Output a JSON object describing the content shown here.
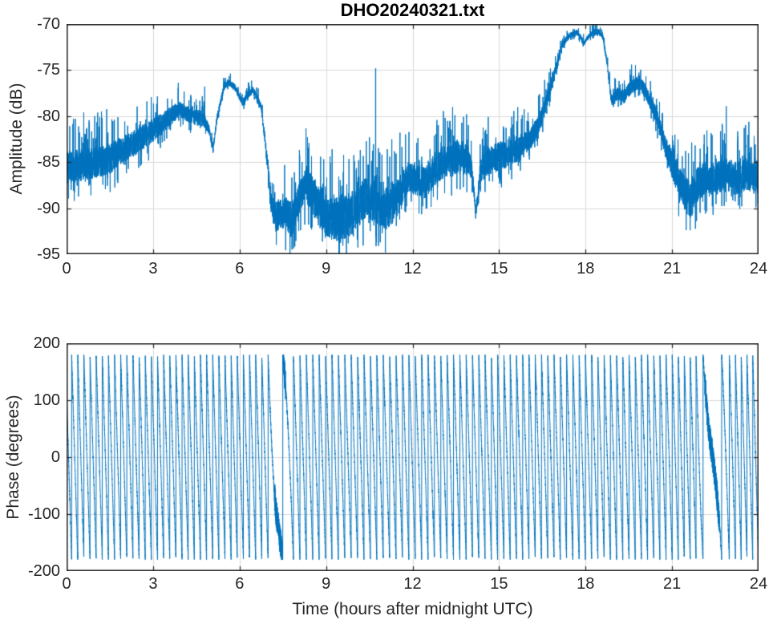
{
  "figure": {
    "background_color": "#ffffff",
    "line_color": "#0072bd",
    "axis_color": "#262626",
    "grid_color": "#d9d9d9",
    "title_color": "#000000"
  },
  "chart_data": [
    {
      "type": "line",
      "title": "DHO20240321.txt",
      "xlabel": "",
      "ylabel": "Amplitude (dB)",
      "xlim": [
        0,
        24
      ],
      "ylim": [
        -95,
        -70
      ],
      "xticks": [
        0,
        3,
        6,
        9,
        12,
        15,
        18,
        21,
        24
      ],
      "yticks": [
        -70,
        -75,
        -80,
        -85,
        -90,
        -95
      ],
      "grid": true,
      "legend": null,
      "series": [
        {
          "name": "amplitude",
          "representation": "noisy_envelope",
          "t": [
            0.0,
            0.5,
            1.0,
            1.5,
            2.0,
            2.5,
            3.0,
            3.5,
            3.9,
            4.2,
            4.5,
            4.75,
            4.95,
            5.08,
            5.2,
            5.45,
            5.62,
            5.85,
            6.1,
            6.3,
            6.45,
            6.6,
            6.75,
            6.9,
            7.1,
            7.25,
            7.5,
            7.8,
            8.05,
            8.3,
            8.6,
            9.0,
            9.5,
            10.0,
            10.4,
            10.75,
            11.1,
            11.5,
            11.85,
            12.15,
            12.45,
            12.75,
            13.1,
            13.5,
            13.85,
            14.05,
            14.2,
            14.35,
            14.6,
            15.0,
            15.4,
            15.8,
            16.1,
            16.45,
            16.75,
            17.0,
            17.2,
            17.45,
            17.7,
            17.95,
            18.2,
            18.45,
            18.6,
            18.75,
            18.9,
            19.1,
            19.35,
            19.6,
            19.85,
            20.1,
            20.45,
            20.8,
            21.1,
            21.4,
            21.65,
            21.9,
            22.2,
            22.5,
            22.85,
            23.2,
            23.6,
            24.0
          ],
          "mean_db": [
            -85.6,
            -85.3,
            -85.0,
            -84.6,
            -83.6,
            -82.6,
            -81.6,
            -80.3,
            -79.2,
            -79.8,
            -80.1,
            -80.3,
            -81.5,
            -83.7,
            -80.5,
            -76.9,
            -76.3,
            -76.9,
            -78.6,
            -77.6,
            -77.2,
            -77.9,
            -79.0,
            -83.0,
            -89.5,
            -91.0,
            -90.3,
            -91.3,
            -89.0,
            -87.2,
            -89.0,
            -90.8,
            -91.3,
            -90.3,
            -88.8,
            -89.3,
            -90.0,
            -88.8,
            -86.6,
            -87.0,
            -87.3,
            -85.8,
            -84.9,
            -84.4,
            -84.6,
            -85.8,
            -90.6,
            -86.0,
            -84.9,
            -84.4,
            -83.9,
            -83.3,
            -82.4,
            -80.3,
            -77.3,
            -74.4,
            -72.2,
            -71.2,
            -70.9,
            -72.0,
            -71.0,
            -70.8,
            -71.4,
            -74.3,
            -78.4,
            -77.6,
            -77.9,
            -76.8,
            -76.3,
            -77.4,
            -79.9,
            -83.6,
            -85.9,
            -88.1,
            -89.3,
            -87.3,
            -86.6,
            -86.9,
            -86.2,
            -86.8,
            -86.3,
            -86.6
          ],
          "noise_halfwidth_db": [
            1.8,
            1.8,
            1.7,
            1.7,
            1.5,
            1.4,
            1.3,
            1.1,
            0.9,
            0.9,
            0.9,
            0.8,
            0.5,
            0.3,
            0.4,
            0.35,
            0.35,
            0.35,
            0.4,
            0.4,
            0.4,
            0.4,
            0.4,
            0.6,
            1.2,
            1.6,
            1.9,
            2.0,
            1.8,
            2.0,
            2.3,
            2.4,
            2.4,
            2.4,
            2.2,
            2.4,
            2.4,
            2.2,
            1.6,
            1.7,
            1.7,
            1.8,
            1.8,
            1.9,
            1.8,
            1.0,
            0.6,
            1.2,
            1.6,
            1.6,
            1.5,
            1.4,
            1.2,
            1.0,
            0.8,
            0.5,
            0.35,
            0.3,
            0.3,
            0.3,
            0.3,
            0.3,
            0.3,
            0.35,
            0.6,
            0.7,
            0.8,
            0.8,
            0.8,
            0.8,
            0.9,
            1.2,
            1.7,
            2.0,
            2.0,
            1.9,
            1.8,
            1.8,
            1.8,
            1.8,
            1.8,
            1.8
          ]
        }
      ],
      "spikes": [
        {
          "t": 4.79,
          "peak_db": -76.8
        },
        {
          "t": 10.72,
          "peak_db": -74.8
        },
        {
          "t": 22.88,
          "peak_db": -78.9
        }
      ]
    },
    {
      "type": "line",
      "title": "",
      "xlabel": "Time (hours after midnight UTC)",
      "ylabel": "Phase (degrees)",
      "xlim": [
        0,
        24
      ],
      "ylim": [
        -200,
        200
      ],
      "xticks": [
        0,
        3,
        6,
        9,
        12,
        15,
        18,
        21,
        24
      ],
      "yticks": [
        200,
        100,
        0,
        -100,
        -200
      ],
      "grid": true,
      "legend": null,
      "series": [
        {
          "name": "wrapped_phase",
          "representation": "phase_wrap_sawtooth",
          "wrap_deg": 180,
          "start_phase_deg": 120,
          "freq_t": [
            0.0,
            6.9,
            7.1,
            7.3,
            7.5,
            7.7,
            7.95,
            9.0,
            12.0,
            15.0,
            18.0,
            21.0,
            21.9,
            22.1,
            22.35,
            22.6,
            22.85,
            23.2,
            24.0
          ],
          "freq_cycles_per_hour": [
            4.7,
            4.7,
            3.2,
            0.9,
            1.1,
            3.0,
            4.5,
            4.5,
            4.5,
            4.6,
            4.6,
            4.7,
            5.0,
            2.2,
            0.9,
            1.5,
            4.0,
            5.0,
            5.0
          ],
          "slow_segments": [
            [
              7.1,
              7.7
            ],
            [
              22.1,
              22.7
            ]
          ]
        }
      ]
    }
  ]
}
